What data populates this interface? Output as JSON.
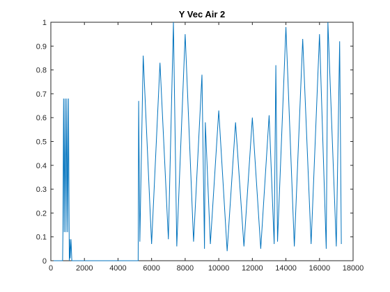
{
  "chart_data": {
    "type": "line",
    "title": "Y Vec Air 2",
    "xlabel": "",
    "ylabel": "",
    "xlim": [
      0,
      18000
    ],
    "ylim": [
      0,
      1
    ],
    "x_ticks": [
      0,
      2000,
      4000,
      6000,
      8000,
      10000,
      12000,
      14000,
      16000,
      18000
    ],
    "x_tick_labels": [
      "0",
      "2000",
      "4000",
      "6000",
      "8000",
      "10000",
      "12000",
      "14000",
      "16000",
      "18000"
    ],
    "y_ticks": [
      0,
      0.1,
      0.2,
      0.3,
      0.4,
      0.5,
      0.6,
      0.7,
      0.8,
      0.9,
      1
    ],
    "y_tick_labels": [
      "0",
      "0.1",
      "0.2",
      "0.3",
      "0.4",
      "0.5",
      "0.6",
      "0.7",
      "0.8",
      "0.9",
      "1"
    ],
    "grid": false,
    "series_color": "#0072BD",
    "x": [
      0,
      700,
      720,
      760,
      800,
      850,
      900,
      950,
      1000,
      1050,
      1100,
      1120,
      1150,
      1200,
      1250,
      1300,
      1500,
      3000,
      5200,
      5230,
      5300,
      5500,
      6000,
      6500,
      7000,
      7300,
      7500,
      8000,
      8500,
      9000,
      9150,
      9200,
      9500,
      10000,
      10500,
      11000,
      11500,
      12000,
      12500,
      13000,
      13300,
      13400,
      13500,
      14000,
      14500,
      15000,
      15500,
      16000,
      16400,
      16500,
      17000,
      17200,
      17300
    ],
    "y": [
      0,
      0,
      0.12,
      0.68,
      0.12,
      0.68,
      0.12,
      0.68,
      0.12,
      0.68,
      0,
      0.09,
      0.01,
      0.09,
      0,
      0,
      0,
      0,
      0,
      0.67,
      0.08,
      0.86,
      0.07,
      0.83,
      0.09,
      1.0,
      0.06,
      0.95,
      0.08,
      0.78,
      0.05,
      0.58,
      0.07,
      0.63,
      0.04,
      0.58,
      0.06,
      0.6,
      0.05,
      0.61,
      0.07,
      0.82,
      0.08,
      0.98,
      0.06,
      0.93,
      0.07,
      0.95,
      0.05,
      1.0,
      0.06,
      0.92,
      0.07
    ]
  }
}
